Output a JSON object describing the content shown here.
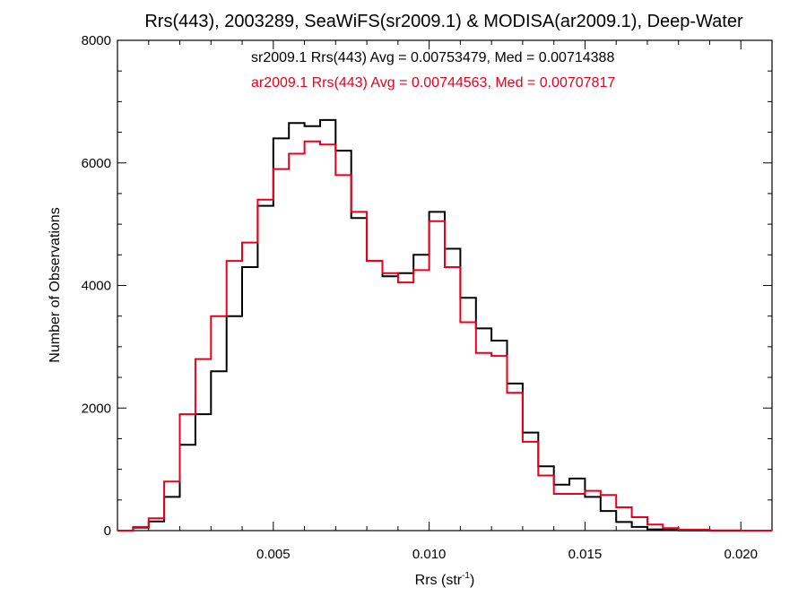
{
  "chart_data": {
    "type": "line",
    "title": "Rrs(443), 2003289, SeaWiFS(sr2009.1) & MODISA(ar2009.1), Deep-Water",
    "xlabel": "Rrs (str",
    "xlabel_superscript": "-1",
    "xlabel_suffix": ")",
    "ylabel": "Number of Observations",
    "xlim": [
      0.0,
      0.021
    ],
    "ylim": [
      0,
      8000
    ],
    "x_ticks": [
      0.005,
      0.01,
      0.015,
      0.02
    ],
    "x_tick_labels": [
      "0.005",
      "0.010",
      "0.015",
      "0.020"
    ],
    "y_ticks": [
      0,
      2000,
      4000,
      6000,
      8000
    ],
    "y_tick_labels": [
      "0",
      "2000",
      "4000",
      "6000",
      "8000"
    ],
    "grid": false,
    "annotations": [
      {
        "text": "sr2009.1 Rrs(443) Avg = 0.00753479, Med = 0.00714388",
        "color": "#000000"
      },
      {
        "text": "ar2009.1 Rrs(443) Avg = 0.00744563, Med = 0.00707817",
        "color": "#e8001c"
      }
    ],
    "series": [
      {
        "color": "#000000",
        "x": [
          0.0,
          0.0005,
          0.001,
          0.0015,
          0.002,
          0.0025,
          0.003,
          0.0035,
          0.004,
          0.0045,
          0.005,
          0.0055,
          0.006,
          0.0065,
          0.007,
          0.0075,
          0.008,
          0.0085,
          0.009,
          0.0095,
          0.01,
          0.0105,
          0.011,
          0.0115,
          0.012,
          0.0125,
          0.013,
          0.0135,
          0.014,
          0.0145,
          0.015,
          0.0155,
          0.016,
          0.0165,
          0.017,
          0.0175,
          0.018,
          0.019,
          0.02,
          0.021
        ],
        "y": [
          0,
          50,
          150,
          550,
          1400,
          1900,
          2600,
          3500,
          4300,
          5300,
          6400,
          6650,
          6600,
          6700,
          6200,
          5100,
          4400,
          4150,
          4200,
          4500,
          5200,
          4600,
          3800,
          3300,
          3100,
          2400,
          1600,
          1050,
          750,
          850,
          550,
          320,
          140,
          60,
          20,
          10,
          5,
          0,
          0,
          0
        ]
      },
      {
        "color": "#e8001c",
        "x": [
          0.0,
          0.0005,
          0.001,
          0.0015,
          0.002,
          0.0025,
          0.003,
          0.0035,
          0.004,
          0.0045,
          0.005,
          0.0055,
          0.006,
          0.0065,
          0.007,
          0.0075,
          0.008,
          0.0085,
          0.009,
          0.0095,
          0.01,
          0.0105,
          0.011,
          0.0115,
          0.012,
          0.0125,
          0.013,
          0.0135,
          0.014,
          0.0145,
          0.015,
          0.0155,
          0.016,
          0.0165,
          0.017,
          0.0175,
          0.018,
          0.019,
          0.02,
          0.021
        ],
        "y": [
          0,
          60,
          200,
          800,
          1900,
          2800,
          3500,
          4400,
          4700,
          5400,
          5900,
          6150,
          6350,
          6300,
          5800,
          5200,
          4400,
          4200,
          4050,
          4250,
          5050,
          4300,
          3400,
          2900,
          2850,
          2250,
          1450,
          900,
          600,
          600,
          650,
          580,
          380,
          220,
          100,
          40,
          15,
          5,
          0,
          0
        ]
      }
    ]
  }
}
